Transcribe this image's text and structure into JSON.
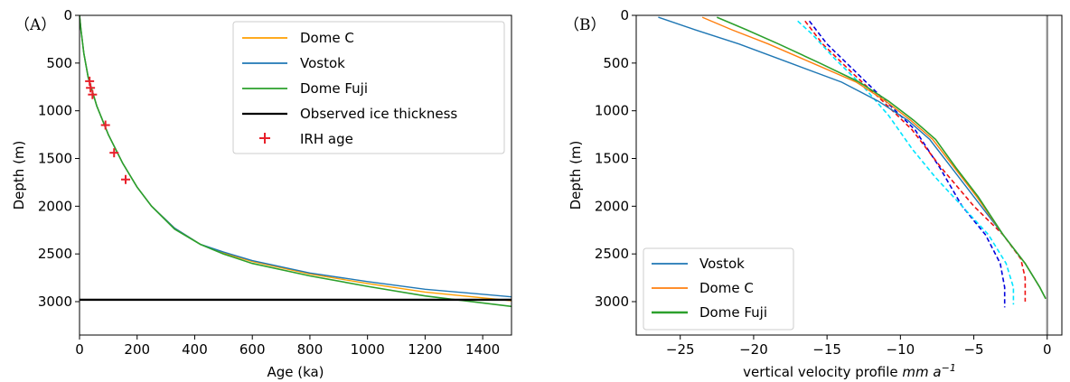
{
  "chart_data": [
    {
      "panel_label": "（A）",
      "type": "line",
      "xlabel": "Age (ka)",
      "ylabel": "Depth (m)",
      "xlim": [
        0,
        1500
      ],
      "ylim": [
        3350,
        0
      ],
      "y_inverted": true,
      "xticks": [
        0,
        200,
        400,
        600,
        800,
        1000,
        1200,
        1400
      ],
      "yticks": [
        0,
        500,
        1000,
        1500,
        2000,
        2500,
        3000
      ],
      "legend_position": "top-right",
      "series": [
        {
          "name": "Dome C",
          "color": "#ff9f00",
          "points": [
            [
              0,
              0
            ],
            [
              5,
              150
            ],
            [
              15,
              400
            ],
            [
              30,
              650
            ],
            [
              60,
              950
            ],
            [
              100,
              1250
            ],
            [
              150,
              1550
            ],
            [
              200,
              1800
            ],
            [
              250,
              2000
            ],
            [
              330,
              2230
            ],
            [
              420,
              2400
            ],
            [
              500,
              2490
            ],
            [
              600,
              2580
            ],
            [
              800,
              2710
            ],
            [
              1000,
              2810
            ],
            [
              1200,
              2900
            ],
            [
              1500,
              2990
            ]
          ]
        },
        {
          "name": "Vostok",
          "color": "#1f77b4",
          "points": [
            [
              0,
              0
            ],
            [
              5,
              150
            ],
            [
              15,
              400
            ],
            [
              30,
              650
            ],
            [
              60,
              950
            ],
            [
              100,
              1250
            ],
            [
              150,
              1550
            ],
            [
              200,
              1800
            ],
            [
              250,
              2000
            ],
            [
              330,
              2230
            ],
            [
              420,
              2400
            ],
            [
              500,
              2480
            ],
            [
              600,
              2570
            ],
            [
              800,
              2700
            ],
            [
              1000,
              2790
            ],
            [
              1200,
              2870
            ],
            [
              1500,
              2950
            ]
          ]
        },
        {
          "name": "Dome Fuji",
          "color": "#2ca02c",
          "points": [
            [
              0,
              0
            ],
            [
              5,
              150
            ],
            [
              15,
              400
            ],
            [
              30,
              650
            ],
            [
              60,
              950
            ],
            [
              100,
              1250
            ],
            [
              150,
              1550
            ],
            [
              200,
              1800
            ],
            [
              250,
              2000
            ],
            [
              330,
              2240
            ],
            [
              420,
              2400
            ],
            [
              500,
              2500
            ],
            [
              600,
              2600
            ],
            [
              800,
              2730
            ],
            [
              1000,
              2840
            ],
            [
              1200,
              2940
            ],
            [
              1500,
              3050
            ]
          ]
        },
        {
          "name": "Observed ice thickness",
          "color": "#000000",
          "points": [
            [
              0,
              2980
            ],
            [
              1500,
              2980
            ]
          ]
        }
      ],
      "markers": {
        "name": "IRH age",
        "color": "#e8202a",
        "symbol": "+",
        "points": [
          [
            35,
            690
          ],
          [
            38,
            760
          ],
          [
            45,
            830
          ],
          [
            90,
            1150
          ],
          [
            120,
            1440
          ],
          [
            160,
            1720
          ]
        ]
      }
    },
    {
      "panel_label": "（B）",
      "type": "line",
      "xlabel": "vertical velocity profile",
      "xlabel_unit": "mm a",
      "xlabel_unit_exp": "−1",
      "ylabel": "Depth (m)",
      "xlim": [
        -28,
        1
      ],
      "ylim": [
        3350,
        0
      ],
      "y_inverted": true,
      "xticks": [
        -25,
        -20,
        -15,
        -10,
        -5,
        0
      ],
      "xtick_labels": [
        "−25",
        "−20",
        "−15",
        "−10",
        "−5",
        "0"
      ],
      "yticks": [
        0,
        500,
        1000,
        1500,
        2000,
        2500,
        3000
      ],
      "legend_position": "bottom-left",
      "series": [
        {
          "name": "Vostok",
          "color": "#1f77b4",
          "points": [
            [
              -26.5,
              20
            ],
            [
              -24,
              150
            ],
            [
              -21,
              300
            ],
            [
              -17.5,
              500
            ],
            [
              -14,
              700
            ],
            [
              -11.5,
              900
            ],
            [
              -9.5,
              1100
            ],
            [
              -8,
              1300
            ],
            [
              -6.5,
              1600
            ],
            [
              -5,
              1900
            ],
            [
              -3,
              2300
            ],
            [
              -1.5,
              2600
            ],
            [
              -0.5,
              2850
            ],
            [
              -0.1,
              2970
            ]
          ]
        },
        {
          "name": "Dome C",
          "color": "#ff7f0e",
          "points": [
            [
              -23.5,
              20
            ],
            [
              -21.5,
              150
            ],
            [
              -19,
              300
            ],
            [
              -16,
              500
            ],
            [
              -13,
              700
            ],
            [
              -11,
              900
            ],
            [
              -9.3,
              1100
            ],
            [
              -7.8,
              1300
            ],
            [
              -6.3,
              1600
            ],
            [
              -4.8,
              1900
            ],
            [
              -3,
              2300
            ],
            [
              -1.5,
              2600
            ],
            [
              -0.5,
              2850
            ],
            [
              -0.1,
              2970
            ]
          ]
        },
        {
          "name": "Dome Fuji",
          "color": "#2ca02c",
          "points": [
            [
              -22.5,
              20
            ],
            [
              -20.5,
              150
            ],
            [
              -18.3,
              300
            ],
            [
              -15.5,
              500
            ],
            [
              -12.8,
              700
            ],
            [
              -10.8,
              900
            ],
            [
              -9.1,
              1100
            ],
            [
              -7.6,
              1300
            ],
            [
              -6.2,
              1600
            ],
            [
              -4.7,
              1900
            ],
            [
              -3,
              2300
            ],
            [
              -1.5,
              2600
            ],
            [
              -0.5,
              2850
            ],
            [
              -0.1,
              2970
            ]
          ]
        }
      ],
      "dashed_lines": [
        {
          "color": "#0000dd",
          "points": [
            [
              -16.2,
              60
            ],
            [
              -15,
              300
            ],
            [
              -13,
              600
            ],
            [
              -11,
              900
            ],
            [
              -9,
              1200
            ],
            [
              -7.3,
              1600
            ],
            [
              -5.8,
              2000
            ],
            [
              -4.2,
              2300
            ],
            [
              -3.2,
              2600
            ],
            [
              -2.9,
              2850
            ],
            [
              -2.9,
              3060
            ]
          ]
        },
        {
          "color": "#ee1111",
          "points": [
            [
              -16.5,
              60
            ],
            [
              -15.3,
              300
            ],
            [
              -13.3,
              600
            ],
            [
              -11.2,
              900
            ],
            [
              -9.2,
              1200
            ],
            [
              -7.2,
              1600
            ],
            [
              -5,
              2000
            ],
            [
              -3,
              2300
            ],
            [
              -1.8,
              2550
            ],
            [
              -1.5,
              2750
            ],
            [
              -1.5,
              3000
            ]
          ]
        },
        {
          "color": "#00e5ff",
          "points": [
            [
              -17,
              60
            ],
            [
              -16,
              200
            ],
            [
              -14.5,
              450
            ],
            [
              -12.5,
              750
            ],
            [
              -10.8,
              1050
            ],
            [
              -9.2,
              1400
            ],
            [
              -7.6,
              1700
            ],
            [
              -5.8,
              2000
            ],
            [
              -4,
              2300
            ],
            [
              -2.8,
              2600
            ],
            [
              -2.3,
              2850
            ],
            [
              -2.3,
              3030
            ]
          ]
        }
      ]
    }
  ]
}
